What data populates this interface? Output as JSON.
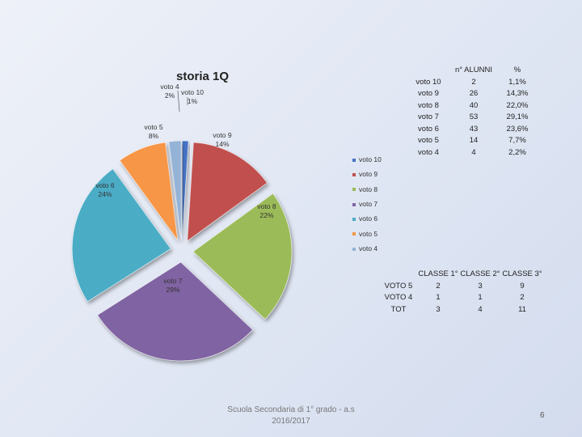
{
  "chart_data": {
    "type": "pie",
    "title": "storia 1Q",
    "slices": [
      {
        "name": "voto 10",
        "value": 1,
        "label": "voto 10\n1%",
        "color": "#4472C4"
      },
      {
        "name": "voto 9",
        "value": 14,
        "label": "voto 9\n14%",
        "color": "#C0504D"
      },
      {
        "name": "voto 8",
        "value": 22,
        "label": "voto 8\n22%",
        "color": "#9BBB59"
      },
      {
        "name": "voto 7",
        "value": 29,
        "label": "voto 7\n29%",
        "color": "#8064A2"
      },
      {
        "name": "voto 6",
        "value": 24,
        "label": "voto 6\n24%",
        "color": "#4BACC6"
      },
      {
        "name": "voto 5",
        "value": 8,
        "label": "voto 5\n8%",
        "color": "#F79646"
      },
      {
        "name": "voto 4",
        "value": 2,
        "label": "voto 4\n2%",
        "color": "#95B3D7"
      }
    ],
    "legend": [
      "voto 10",
      "voto 9",
      "voto 8",
      "voto 7",
      "voto 6",
      "voto 5",
      "voto 4"
    ],
    "legend_position": "right"
  },
  "votes_table": {
    "headers": [
      "",
      "n° ALUNNI",
      "%"
    ],
    "rows": [
      [
        "voto 10",
        "2",
        "1,1%"
      ],
      [
        "voto 9",
        "26",
        "14,3%"
      ],
      [
        "voto 8",
        "40",
        "22,0%"
      ],
      [
        "voto 7",
        "53",
        "29,1%"
      ],
      [
        "voto 6",
        "43",
        "23,6%"
      ],
      [
        "voto 5",
        "14",
        "7,7%"
      ],
      [
        "voto 4",
        "4",
        "2,2%"
      ]
    ]
  },
  "classes_table": {
    "headers": [
      "",
      "CLASSE 1°",
      "CLASSE 2°",
      "CLASSE 3°"
    ],
    "rows": [
      [
        "VOTO 5",
        "2",
        "3",
        "9"
      ],
      [
        "VOTO 4",
        "1",
        "1",
        "2"
      ],
      [
        "TOT",
        "3",
        "4",
        "11"
      ]
    ]
  },
  "footer": {
    "school": "Scuola Secondaria di 1° grado - a.s 2016/2017",
    "page_number": "6"
  }
}
